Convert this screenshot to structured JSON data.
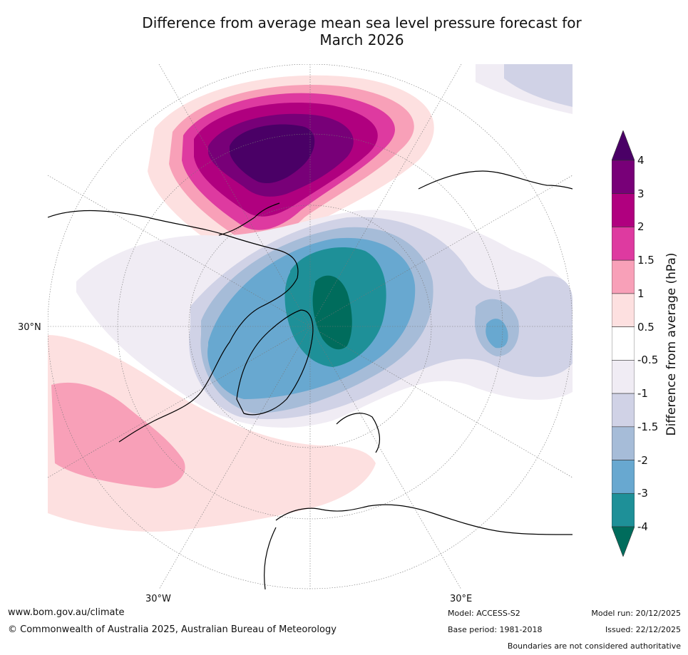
{
  "title_line1": "Difference from average mean sea level pressure forecast for",
  "title_line2": "March 2026",
  "map": {
    "lat_label_left": "30°N",
    "lon_label_left": "30°W",
    "lon_label_right": "30°E"
  },
  "legend": {
    "title": "Difference from average (hPa)",
    "levels": [
      "4",
      "3",
      "2",
      "1.5",
      "1",
      "0.5",
      "-0.5",
      "-1",
      "-1.5",
      "-2",
      "-3",
      "-4"
    ],
    "colors": [
      "#4a0066",
      "#780078",
      "#b0007f",
      "#de3aa0",
      "#f8a0b8",
      "#fde0e0",
      "#ffffff",
      "#f0ecf4",
      "#d0d2e6",
      "#a6bcd8",
      "#68a8d0",
      "#1e9098",
      "#006c5c"
    ]
  },
  "footer": {
    "url": "www.bom.gov.au/climate",
    "copyright": "© Commonwealth of Australia 2025, Australian Bureau of Meteorology",
    "model": "Model: ACCESS-S2",
    "base_period": "Base period: 1981-2018",
    "model_run": "Model run: 20/12/2025",
    "issued": "Issued: 22/12/2025",
    "disclaimer": "Boundaries are not considered authoritative"
  }
}
